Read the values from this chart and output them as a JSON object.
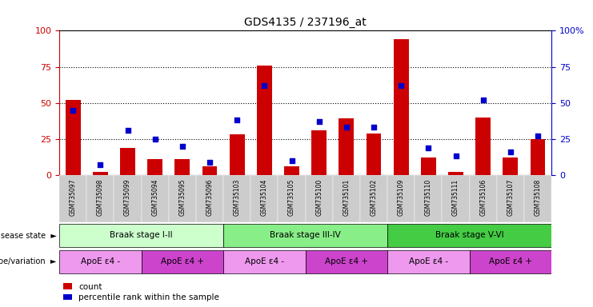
{
  "title": "GDS4135 / 237196_at",
  "samples": [
    "GSM735097",
    "GSM735098",
    "GSM735099",
    "GSM735094",
    "GSM735095",
    "GSM735096",
    "GSM735103",
    "GSM735104",
    "GSM735105",
    "GSM735100",
    "GSM735101",
    "GSM735102",
    "GSM735109",
    "GSM735110",
    "GSM735111",
    "GSM735106",
    "GSM735107",
    "GSM735108"
  ],
  "counts": [
    52,
    2,
    19,
    11,
    11,
    6,
    28,
    76,
    6,
    31,
    39,
    29,
    94,
    12,
    2,
    40,
    12,
    25
  ],
  "percentiles": [
    45,
    7,
    31,
    25,
    20,
    9,
    38,
    62,
    10,
    37,
    33,
    33,
    62,
    19,
    13,
    52,
    16,
    27
  ],
  "bar_color": "#cc0000",
  "dot_color": "#0000cc",
  "ylim": [
    0,
    100
  ],
  "yticks": [
    0,
    25,
    50,
    75,
    100
  ],
  "yticklabels_right": [
    "0",
    "25",
    "50",
    "75",
    "100%"
  ],
  "grid_lines": [
    25,
    50,
    75
  ],
  "disease_state_groups": [
    {
      "label": "Braak stage I-II",
      "start": 0,
      "end": 6,
      "color": "#ccffcc"
    },
    {
      "label": "Braak stage III-IV",
      "start": 6,
      "end": 12,
      "color": "#88ee88"
    },
    {
      "label": "Braak stage V-VI",
      "start": 12,
      "end": 18,
      "color": "#44cc44"
    }
  ],
  "genotype_groups": [
    {
      "label": "ApoE ε4 -",
      "start": 0,
      "end": 3,
      "color": "#ee99ee"
    },
    {
      "label": "ApoE ε4 +",
      "start": 3,
      "end": 6,
      "color": "#cc44cc"
    },
    {
      "label": "ApoE ε4 -",
      "start": 6,
      "end": 9,
      "color": "#ee99ee"
    },
    {
      "label": "ApoE ε4 +",
      "start": 9,
      "end": 12,
      "color": "#cc44cc"
    },
    {
      "label": "ApoE ε4 -",
      "start": 12,
      "end": 15,
      "color": "#ee99ee"
    },
    {
      "label": "ApoE ε4 +",
      "start": 15,
      "end": 18,
      "color": "#cc44cc"
    }
  ],
  "disease_label": "disease state",
  "genotype_label": "genotype/variation",
  "legend_count": "count",
  "legend_percentile": "percentile rank within the sample",
  "axis_color_left": "#cc0000",
  "axis_color_right": "#0000cc",
  "sample_bg": "#cccccc"
}
